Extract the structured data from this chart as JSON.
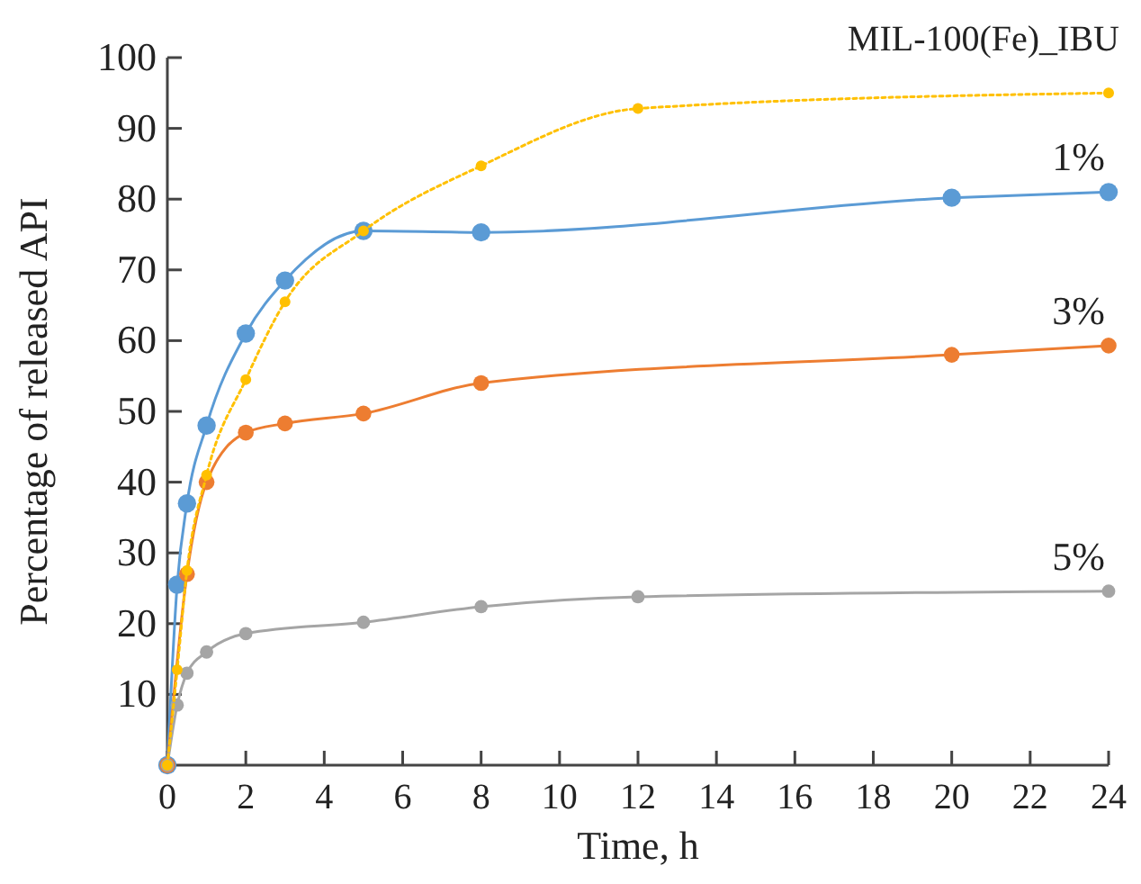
{
  "chart_data": {
    "type": "line",
    "title": "MIL-100(Fe)_IBU",
    "xlabel": "Time, h",
    "ylabel": "Percentage of released API",
    "xlim": [
      0,
      24
    ],
    "xticks": [
      0,
      2,
      4,
      6,
      8,
      10,
      12,
      14,
      16,
      18,
      20,
      22,
      24
    ],
    "ylim": [
      0,
      100
    ],
    "yticks": [
      10,
      20,
      30,
      40,
      50,
      60,
      70,
      80,
      90,
      100
    ],
    "marker": "circle",
    "grid": false,
    "series": [
      {
        "name": "1%",
        "color": "#5b9bd5",
        "x": [
          0,
          0.25,
          0.5,
          1,
          2,
          3,
          5,
          8,
          20,
          24
        ],
        "values": [
          0,
          25.5,
          37,
          48,
          61,
          68.5,
          75.5,
          75.3,
          80.2,
          81
        ]
      },
      {
        "name": "3%",
        "color": "#ed7d31",
        "x": [
          0,
          0.5,
          1,
          2,
          3,
          5,
          8,
          20,
          24
        ],
        "values": [
          0,
          27,
          40,
          47,
          48.3,
          49.7,
          54,
          58,
          59.3
        ]
      },
      {
        "name": "5%",
        "color": "#a5a5a5",
        "x": [
          0,
          0.25,
          0.5,
          1,
          2,
          5,
          8,
          12,
          24
        ],
        "values": [
          0,
          8.5,
          13,
          16,
          18.6,
          20.2,
          22.4,
          23.8,
          24.6
        ]
      },
      {
        "color": "#ffc000",
        "line_style": "dotted",
        "x": [
          0,
          0.25,
          0.5,
          1,
          2,
          3,
          5,
          8,
          12,
          24
        ],
        "values": [
          0,
          13.5,
          27.5,
          41,
          54.5,
          65.5,
          75.5,
          84.7,
          92.8,
          95
        ]
      }
    ]
  }
}
